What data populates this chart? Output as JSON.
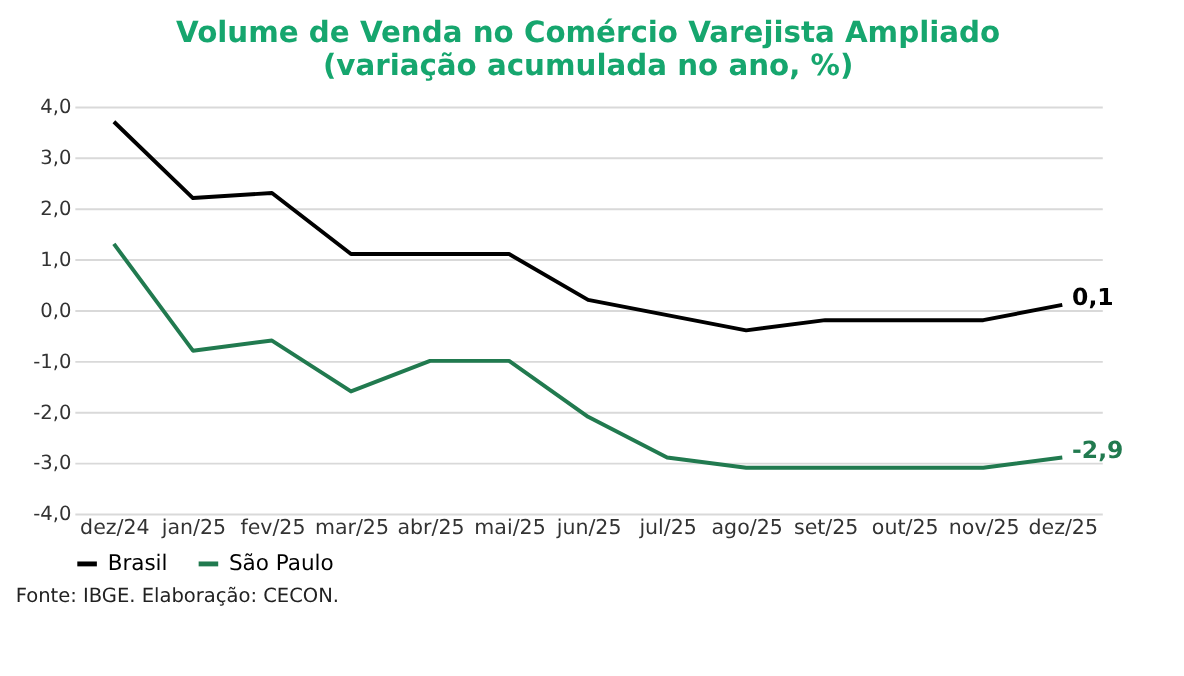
{
  "chart_data": {
    "type": "line",
    "title": [
      "Volume de Venda no Comércio Varejista Ampliado",
      "(variação acumulada no ano, %)"
    ],
    "categories": [
      "dez/24",
      "jan/25",
      "fev/25",
      "mar/25",
      "abr/25",
      "mai/25",
      "jun/25",
      "jul/25",
      "ago/25",
      "set/25",
      "out/25",
      "nov/25",
      "dez/25"
    ],
    "series": [
      {
        "name": "Brasil",
        "color": "#000000",
        "values": [
          3.7,
          2.2,
          2.3,
          1.1,
          1.1,
          1.1,
          0.2,
          -0.1,
          -0.4,
          -0.2,
          -0.2,
          -0.2,
          0.1
        ],
        "value_labels": [
          null,
          null,
          null,
          null,
          null,
          null,
          null,
          null,
          null,
          null,
          null,
          null,
          "0,1"
        ]
      },
      {
        "name": "São Paulo",
        "color": "#217a4f",
        "values": [
          1.3,
          -0.8,
          -0.6,
          -1.6,
          -1.0,
          -1.0,
          -2.1,
          -2.9,
          -3.1,
          -3.1,
          -3.1,
          -3.1,
          -2.9
        ],
        "value_labels": [
          null,
          null,
          null,
          null,
          null,
          null,
          null,
          null,
          null,
          null,
          null,
          null,
          "-2,9"
        ]
      }
    ],
    "ylim": [
      -4,
      4
    ],
    "yticks": [
      {
        "value": -4,
        "label": "-4,0"
      },
      {
        "value": -3,
        "label": "-3,0"
      },
      {
        "value": -2,
        "label": "-2,0"
      },
      {
        "value": -1,
        "label": "-1,0"
      },
      {
        "value": 0,
        "label": "0,0"
      },
      {
        "value": 1,
        "label": "1,0"
      },
      {
        "value": 2,
        "label": "2,0"
      },
      {
        "value": 3,
        "label": "3,0"
      },
      {
        "value": 4,
        "label": "4,0"
      }
    ],
    "grid": "y",
    "legend": "bottom",
    "line_style": "solid",
    "marker": "none",
    "annotations": [
      "Fonte: IBGE. Elaboração: CECON."
    ]
  }
}
